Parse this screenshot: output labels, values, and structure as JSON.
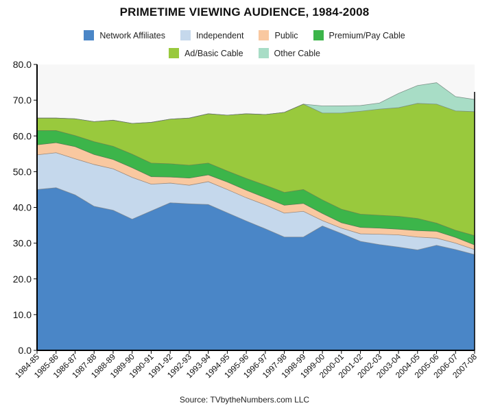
{
  "chart_data": {
    "type": "area",
    "stacked": true,
    "title": "PRIMETIME VIEWING AUDIENCE, 1984-2008",
    "source": "Source: TVbytheNumbers.com LLC",
    "categories": [
      "1984-85",
      "1985-86",
      "1986-87",
      "1987-88",
      "1988-89",
      "1989-90",
      "1990-91",
      "1991-92",
      "1992-93",
      "1993-94",
      "1994-95",
      "1995-96",
      "1996-97",
      "1997-98",
      "1998-99",
      "1999-00",
      "2000-01",
      "2001-02",
      "2002-03",
      "2003-04",
      "2004-05",
      "2005-06",
      "2006-07",
      "2007-08"
    ],
    "ylim": [
      0,
      80
    ],
    "yticks": [
      "0.0",
      "10.0",
      "20.0",
      "30.0",
      "40.0",
      "50.0",
      "60.0",
      "70.0",
      "80.0"
    ],
    "legend_position": "top",
    "grid": false,
    "series": [
      {
        "name": "Network Affiliates",
        "color": "#4a86c7",
        "values": [
          45.0,
          45.5,
          43.5,
          40.3,
          39.2,
          36.7,
          39.0,
          41.3,
          41.0,
          40.8,
          38.5,
          36.2,
          34.0,
          31.7,
          31.7,
          34.8,
          32.7,
          30.5,
          29.6,
          28.9,
          28.1,
          29.4,
          28.2,
          26.8
        ]
      },
      {
        "name": "Independent",
        "color": "#c5d8ec",
        "values": [
          9.7,
          9.8,
          10.1,
          11.7,
          11.6,
          11.7,
          7.5,
          5.5,
          5.2,
          6.4,
          6.5,
          6.5,
          6.7,
          6.7,
          7.2,
          1.5,
          1.5,
          2.1,
          2.9,
          3.4,
          3.6,
          2.0,
          1.8,
          1.4
        ]
      },
      {
        "name": "Public",
        "color": "#f9c8a0",
        "values": [
          2.8,
          2.8,
          3.4,
          2.8,
          2.6,
          2.7,
          2.1,
          1.7,
          2.0,
          1.9,
          2.1,
          2.1,
          2.0,
          2.2,
          2.2,
          2.0,
          1.5,
          1.8,
          1.7,
          1.6,
          1.8,
          1.9,
          1.6,
          1.3
        ]
      },
      {
        "name": "Premium/Pay Cable",
        "color": "#3cb54a",
        "values": [
          4.0,
          3.4,
          3.1,
          3.6,
          3.7,
          3.8,
          3.8,
          3.7,
          3.6,
          3.3,
          3.1,
          3.3,
          3.5,
          3.6,
          3.9,
          3.8,
          3.8,
          3.7,
          3.6,
          3.6,
          3.4,
          2.3,
          2.0,
          2.6
        ]
      },
      {
        "name": "Ad/Basic Cable",
        "color": "#99c93d",
        "values": [
          3.5,
          3.5,
          4.7,
          5.6,
          7.3,
          8.6,
          11.4,
          12.5,
          13.2,
          13.8,
          15.6,
          18.1,
          19.8,
          22.4,
          23.9,
          24.3,
          26.9,
          28.8,
          29.7,
          30.4,
          32.2,
          33.3,
          33.4,
          34.7
        ]
      },
      {
        "name": "Other Cable",
        "color": "#a8ddc6",
        "values": [
          0,
          0,
          0,
          0,
          0,
          0,
          0,
          0,
          0,
          0,
          0,
          0,
          0,
          0,
          0,
          2.0,
          2.0,
          1.6,
          1.7,
          4.0,
          5.0,
          6.0,
          4.0,
          3.4
        ]
      }
    ]
  }
}
